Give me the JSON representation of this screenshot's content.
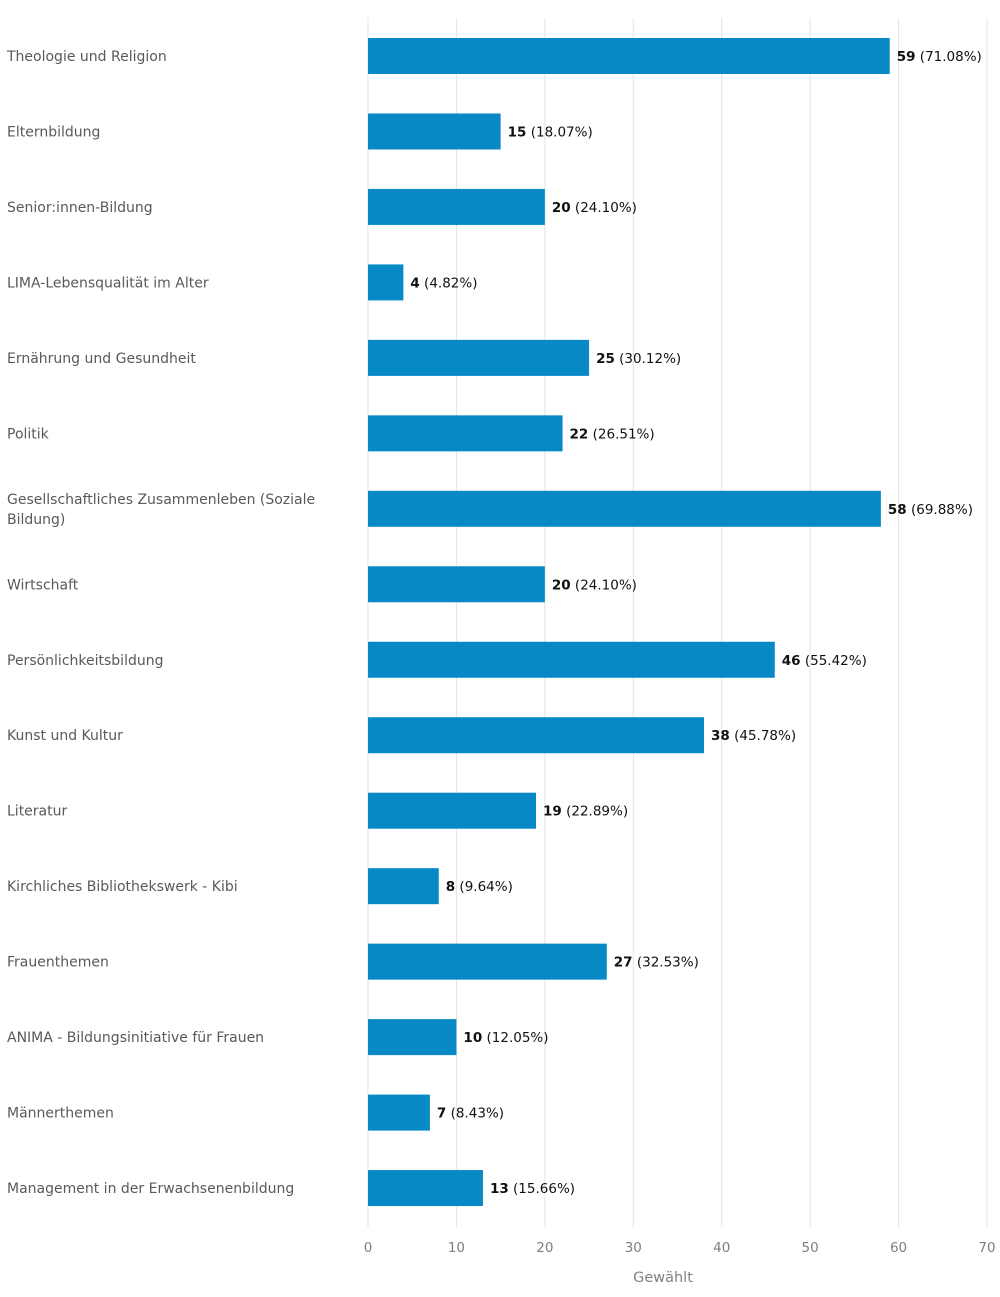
{
  "colors": {
    "bar": "#0789c6",
    "grid": "#e3e3e3"
  },
  "chart_data": {
    "type": "bar",
    "orientation": "horizontal",
    "categories": [
      "Theologie und Religion",
      "Elternbildung",
      "Senior:innen-Bildung",
      "LIMA-Lebensqualität im Alter",
      "Ernährung und Gesundheit",
      "Politik",
      "Gesellschaftliches Zusammenleben (Soziale Bildung)",
      "Wirtschaft",
      "Persönlichkeitsbildung",
      "Kunst und Kultur",
      "Literatur",
      "Kirchliches Bibliothekswerk - Kibi",
      "Frauenthemen",
      "ANIMA - Bildungsinitiative für Frauen",
      "Männerthemen",
      "Management in der Erwachsenenbildung"
    ],
    "values": [
      59,
      15,
      20,
      4,
      25,
      22,
      58,
      20,
      46,
      38,
      19,
      8,
      27,
      10,
      7,
      13
    ],
    "value_labels": [
      "59",
      "15",
      "20",
      "4",
      "25",
      "22",
      "58",
      "20",
      "46",
      "38",
      "19",
      "8",
      "27",
      "10",
      "7",
      "13"
    ],
    "percent_labels": [
      "(71.08%)",
      "(18.07%)",
      "(24.10%)",
      "(4.82%)",
      "(30.12%)",
      "(26.51%)",
      "(69.88%)",
      "(24.10%)",
      "(55.42%)",
      "(45.78%)",
      "(22.89%)",
      "(9.64%)",
      "(32.53%)",
      "(12.05%)",
      "(8.43%)",
      "(15.66%)"
    ],
    "xlabel": "Gewählt",
    "xlim": [
      0,
      70
    ],
    "xticks": [
      0,
      10,
      20,
      30,
      40,
      50,
      60,
      70
    ],
    "xtick_labels": [
      "0",
      "10",
      "20",
      "30",
      "40",
      "50",
      "60",
      "70"
    ],
    "grid": true,
    "legend": "none"
  }
}
